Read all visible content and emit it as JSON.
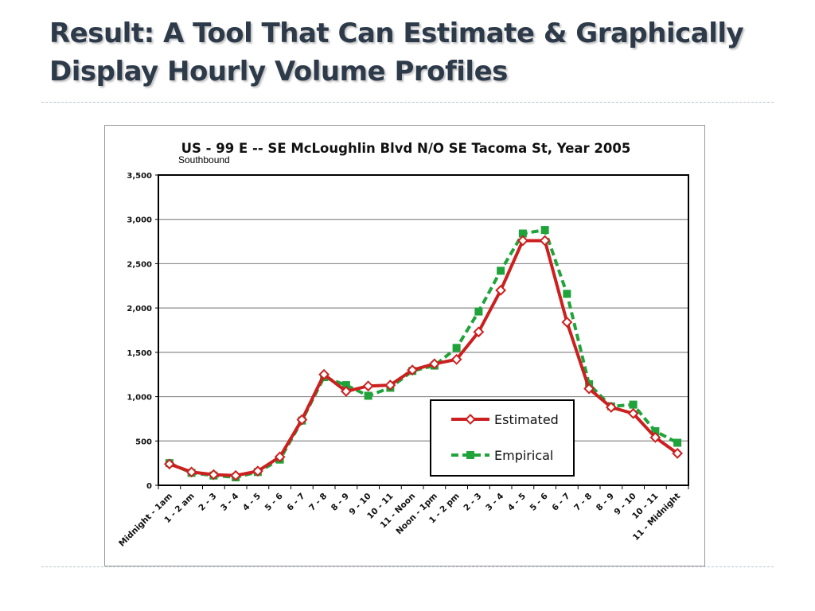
{
  "slide": {
    "title_line1": "Result:  A Tool That Can Estimate & Graphically",
    "title_line2": "Display Hourly Volume Profiles"
  },
  "colors": {
    "estimated": "#cc1f1f",
    "empirical": "#1fa33a",
    "title": "#2d3a4a"
  },
  "chart_data": {
    "type": "line",
    "title": "US - 99 E  -- SE McLoughlin Blvd  N/O  SE Tacoma St,  Year 2005",
    "subtitle": "Southbound",
    "xlabel": "",
    "ylabel": "",
    "ylim": [
      0,
      3500
    ],
    "yticks": [
      0,
      500,
      1000,
      1500,
      2000,
      2500,
      3000,
      3500
    ],
    "ytick_labels": [
      "0",
      "500",
      "1,000",
      "1,500",
      "2,000",
      "2,500",
      "3,000",
      "3,500"
    ],
    "grid": true,
    "legend_position": "bottom-right",
    "categories": [
      "Midnight - 1am",
      "1 - 2 am",
      "2 - 3",
      "3 - 4",
      "4 - 5",
      "5 - 6",
      "6 - 7",
      "7 - 8",
      "8 - 9",
      "9 - 10",
      "10 - 11",
      "11 - Noon",
      "Noon - 1pm",
      "1 - 2 pm",
      "2 - 3",
      "3 - 4",
      "4 - 5",
      "5 - 6",
      "6 - 7",
      "7 - 8",
      "8 - 9",
      "9 - 10",
      "10 - 11",
      "11 - Midnight"
    ],
    "series": [
      {
        "name": "Estimated",
        "marker": "diamond",
        "values": [
          240,
          150,
          120,
          110,
          160,
          320,
          740,
          1250,
          1060,
          1120,
          1130,
          1300,
          1370,
          1420,
          1730,
          2200,
          2760,
          2760,
          1840,
          1090,
          880,
          810,
          540,
          360
        ]
      },
      {
        "name": "Empirical",
        "marker": "square",
        "values": [
          250,
          140,
          110,
          90,
          150,
          290,
          730,
          1220,
          1130,
          1010,
          1100,
          1290,
          1350,
          1550,
          1960,
          2420,
          2840,
          2880,
          2160,
          1140,
          890,
          910,
          610,
          480
        ]
      }
    ]
  }
}
